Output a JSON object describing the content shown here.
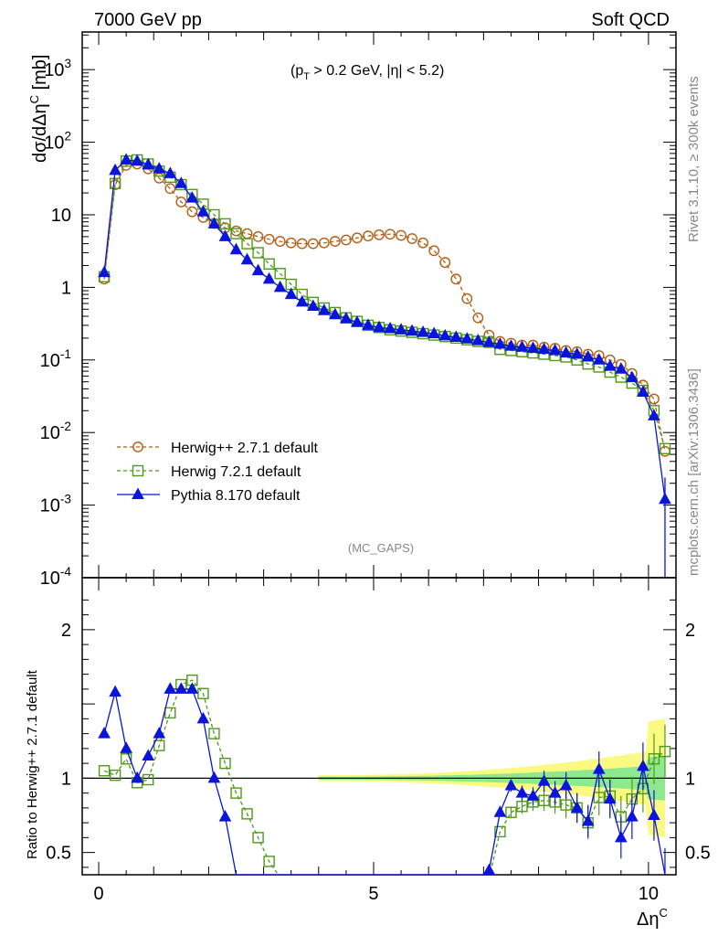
{
  "header": {
    "left_title": "7000 GeV pp",
    "right_title": "Soft QCD"
  },
  "side_text": {
    "rivet": "Rivet 3.1.10, ≥ 300k events",
    "mcplots": "mcplots.cern.ch [arXiv:1306.3436]"
  },
  "chart_data": [
    {
      "type": "line",
      "panel": "main",
      "ylabel": "dσ/dΔη^C [mb]",
      "annotation": "(p_T > 0.2 GeV, |η| < 5.2)",
      "watermark": "(MC_GAPS)",
      "yscale": "log",
      "xlim": [
        -0.3,
        10.5
      ],
      "ylim": [
        0.0001,
        3300
      ],
      "yticks": [
        {
          "v": 1000,
          "label": "10^3"
        },
        {
          "v": 100,
          "label": "10^2"
        },
        {
          "v": 10,
          "label": "10"
        },
        {
          "v": 1,
          "label": "1"
        },
        {
          "v": 0.1,
          "label": "10^-1"
        },
        {
          "v": 0.01,
          "label": "10^-2"
        },
        {
          "v": 0.001,
          "label": "10^-3"
        },
        {
          "v": 0.0001,
          "label": "10^-4"
        }
      ],
      "legend_position": "bottom-left",
      "x": [
        0.1,
        0.3,
        0.5,
        0.7,
        0.9,
        1.1,
        1.3,
        1.5,
        1.7,
        1.9,
        2.1,
        2.3,
        2.5,
        2.7,
        2.9,
        3.1,
        3.3,
        3.5,
        3.7,
        3.9,
        4.1,
        4.3,
        4.5,
        4.7,
        4.9,
        5.1,
        5.3,
        5.5,
        5.7,
        5.9,
        6.1,
        6.3,
        6.5,
        6.7,
        6.9,
        7.1,
        7.3,
        7.5,
        7.7,
        7.9,
        8.1,
        8.3,
        8.5,
        8.7,
        8.9,
        9.1,
        9.3,
        9.5,
        9.7,
        9.9,
        10.1,
        10.3
      ],
      "series": [
        {
          "name": "Herwig++ 2.7.1 default",
          "color": "#b35e16",
          "marker": "circle",
          "dashed": true,
          "values": [
            1.3,
            26,
            48,
            50,
            43,
            32,
            23,
            15,
            11,
            9.2,
            7.6,
            6.6,
            6,
            5.5,
            5,
            4.6,
            4.3,
            4.1,
            4,
            4,
            4.1,
            4.3,
            4.5,
            4.8,
            5.1,
            5.3,
            5.4,
            5.2,
            4.7,
            4.1,
            3.2,
            2.2,
            1.3,
            0.7,
            0.38,
            0.22,
            0.18,
            0.17,
            0.16,
            0.16,
            0.15,
            0.145,
            0.135,
            0.13,
            0.12,
            0.115,
            0.1,
            0.087,
            0.065,
            0.045,
            0.029,
            0.0055
          ]
        },
        {
          "name": "Herwig 7.2.1 default",
          "color": "#4f9a18",
          "marker": "square",
          "dashed": true,
          "values": [
            1.4,
            27,
            55,
            57,
            50,
            40,
            33,
            26,
            19,
            14,
            10,
            7.5,
            5.5,
            4,
            3,
            2.1,
            1.55,
            1.1,
            0.8,
            0.62,
            0.52,
            0.45,
            0.38,
            0.34,
            0.3,
            0.28,
            0.26,
            0.25,
            0.24,
            0.23,
            0.22,
            0.21,
            0.2,
            0.19,
            0.18,
            0.175,
            0.14,
            0.135,
            0.13,
            0.125,
            0.12,
            0.115,
            0.11,
            0.1,
            0.088,
            0.08,
            0.068,
            0.058,
            0.048,
            0.038,
            0.02,
            0.006
          ]
        },
        {
          "name": "Pythia 8.170 default",
          "color": "#0a14dc",
          "marker": "triangle",
          "dashed": false,
          "values": [
            1.6,
            41,
            57,
            55,
            49,
            43,
            37,
            27,
            17,
            11,
            7.5,
            5,
            3.3,
            2.4,
            1.7,
            1.3,
            1,
            0.8,
            0.63,
            0.55,
            0.48,
            0.42,
            0.37,
            0.33,
            0.3,
            0.28,
            0.27,
            0.26,
            0.25,
            0.24,
            0.23,
            0.215,
            0.205,
            0.195,
            0.185,
            0.175,
            0.165,
            0.155,
            0.15,
            0.145,
            0.14,
            0.135,
            0.125,
            0.12,
            0.11,
            0.1,
            0.082,
            0.075,
            0.057,
            0.036,
            0.017,
            0.0012
          ]
        }
      ]
    },
    {
      "type": "line",
      "panel": "ratio",
      "ylabel": "Ratio to Herwig++ 2.7.1 default",
      "xlabel": "Δη^C",
      "xlim": [
        -0.3,
        10.5
      ],
      "ylim": [
        0.35,
        2.35
      ],
      "yticks": [
        {
          "v": 0.5,
          "label": "0.5"
        },
        {
          "v": 1,
          "label": "1"
        },
        {
          "v": 2,
          "label": "2"
        }
      ],
      "xticks": [
        {
          "v": 0,
          "label": "0"
        },
        {
          "v": 5,
          "label": "5"
        },
        {
          "v": 10,
          "label": "10"
        }
      ],
      "reference_line": 1,
      "series": [
        {
          "name": "Herwig 7.2.1 default",
          "color": "#4f9a18",
          "marker": "square",
          "dashed": true,
          "x": [
            0.1,
            0.3,
            0.5,
            0.7,
            0.9,
            1.1,
            1.3,
            1.5,
            1.7,
            1.9,
            2.1,
            2.3,
            2.5,
            2.7,
            2.9,
            3.1,
            3.3,
            7.1,
            7.3,
            7.5,
            7.7,
            7.9,
            8.1,
            8.3,
            8.5,
            8.7,
            8.9,
            9.1,
            9.3,
            9.5,
            9.7,
            9.9,
            10.1,
            10.3
          ],
          "values": [
            1.05,
            1.02,
            1.13,
            0.97,
            0.99,
            1.22,
            1.44,
            1.63,
            1.66,
            1.57,
            1.3,
            1.1,
            0.9,
            0.76,
            0.6,
            0.44,
            0.33,
            0.33,
            0.64,
            0.77,
            0.81,
            0.84,
            0.85,
            0.84,
            0.82,
            0.8,
            0.7,
            0.87,
            0.88,
            0.74,
            0.86,
            0.93,
            1.13,
            1.18
          ]
        },
        {
          "name": "Pythia 8.170 default",
          "color": "#0a14dc",
          "marker": "triangle",
          "dashed": false,
          "x": [
            0.1,
            0.3,
            0.5,
            0.7,
            0.9,
            1.1,
            1.3,
            1.5,
            1.7,
            1.9,
            2.1,
            2.3,
            2.5,
            6.98,
            7.1,
            7.3,
            7.5,
            7.7,
            7.9,
            8.1,
            8.3,
            8.5,
            8.7,
            8.9,
            9.1,
            9.3,
            9.5,
            9.7,
            9.9,
            10.1,
            10.3
          ],
          "values": [
            1.3,
            1.58,
            1.2,
            1.0,
            1.15,
            1.3,
            1.6,
            1.6,
            1.6,
            1.4,
            1.0,
            0.74,
            0.35,
            0.35,
            0.38,
            0.77,
            0.95,
            0.9,
            0.88,
            0.98,
            0.9,
            0.95,
            0.8,
            0.71,
            1.06,
            0.86,
            0.6,
            0.74,
            1.08,
            0.75,
            0.35
          ]
        }
      ]
    }
  ]
}
